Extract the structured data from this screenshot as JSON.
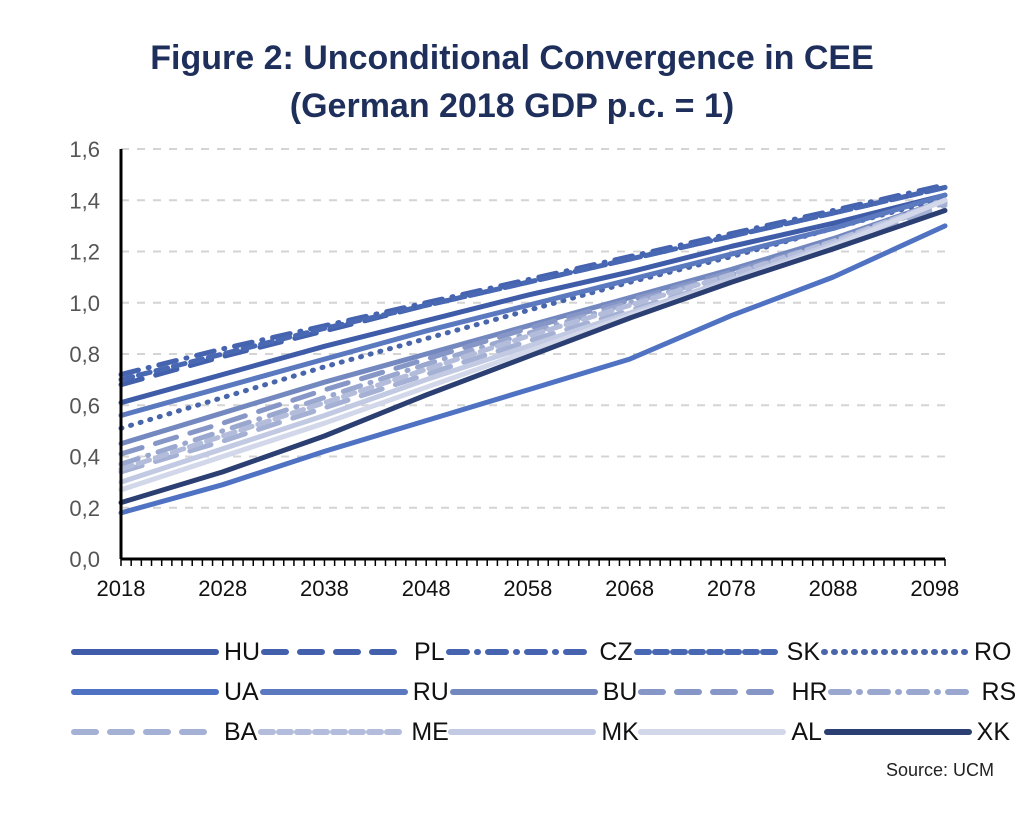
{
  "chart_data": {
    "type": "line",
    "title": "Figure 2: Unconditional Convergence in CEE",
    "subtitle": "(German 2018 GDP p.c. = 1)",
    "xlabel": "",
    "ylabel": "",
    "xlim": [
      2018,
      2099
    ],
    "ylim": [
      0.0,
      1.6
    ],
    "x_ticks": [
      "2018",
      "2028",
      "2038",
      "2048",
      "2058",
      "2068",
      "2078",
      "2088",
      "2098"
    ],
    "y_ticks": [
      "0,0",
      "0,2",
      "0,4",
      "0,6",
      "0,8",
      "1,0",
      "1,2",
      "1,4",
      "1,6"
    ],
    "grid": true,
    "legend_position": "bottom",
    "x": [
      2018,
      2028,
      2038,
      2048,
      2058,
      2068,
      2078,
      2088,
      2099
    ],
    "series": [
      {
        "name": "HU",
        "color": "#3f5ca8",
        "dash": "solid",
        "values": [
          0.61,
          0.72,
          0.83,
          0.93,
          1.03,
          1.12,
          1.22,
          1.31,
          1.42
        ]
      },
      {
        "name": "PL",
        "color": "#4360ad",
        "dash": "longdash",
        "values": [
          0.68,
          0.79,
          0.89,
          0.99,
          1.08,
          1.17,
          1.26,
          1.35,
          1.45
        ]
      },
      {
        "name": "CZ",
        "color": "#4563ae",
        "dash": "dashdot",
        "values": [
          0.72,
          0.82,
          0.91,
          1.0,
          1.09,
          1.18,
          1.27,
          1.36,
          1.46
        ]
      },
      {
        "name": "SK",
        "color": "#4868b3",
        "dash": "dash",
        "values": [
          0.7,
          0.8,
          0.9,
          0.99,
          1.08,
          1.17,
          1.26,
          1.35,
          1.45
        ]
      },
      {
        "name": "RO",
        "color": "#4a66ab",
        "dash": "dot",
        "values": [
          0.51,
          0.63,
          0.75,
          0.86,
          0.97,
          1.08,
          1.18,
          1.29,
          1.41
        ]
      },
      {
        "name": "UA",
        "color": "#4f72c2",
        "dash": "solid",
        "values": [
          0.18,
          0.29,
          0.42,
          0.54,
          0.66,
          0.78,
          0.95,
          1.1,
          1.3
        ]
      },
      {
        "name": "RU",
        "color": "#5b79bf",
        "dash": "solid",
        "values": [
          0.56,
          0.67,
          0.78,
          0.89,
          0.99,
          1.09,
          1.19,
          1.29,
          1.42
        ]
      },
      {
        "name": "BU",
        "color": "#7488c0",
        "dash": "solid",
        "values": [
          0.45,
          0.57,
          0.69,
          0.8,
          0.91,
          1.02,
          1.13,
          1.25,
          1.4
        ]
      },
      {
        "name": "HR",
        "color": "#8696c6",
        "dash": "longdash",
        "values": [
          0.41,
          0.53,
          0.66,
          0.78,
          0.9,
          1.01,
          1.12,
          1.24,
          1.4
        ]
      },
      {
        "name": "RS",
        "color": "#9aa8cf",
        "dash": "dashdot",
        "values": [
          0.37,
          0.5,
          0.63,
          0.76,
          0.88,
          1.0,
          1.11,
          1.23,
          1.39
        ]
      },
      {
        "name": "BA",
        "color": "#a4b0d4",
        "dash": "longdash",
        "values": [
          0.34,
          0.46,
          0.59,
          0.72,
          0.85,
          0.97,
          1.09,
          1.22,
          1.38
        ]
      },
      {
        "name": "ME",
        "color": "#b3bddb",
        "dash": "dash",
        "values": [
          0.35,
          0.48,
          0.61,
          0.74,
          0.87,
          0.99,
          1.11,
          1.24,
          1.4
        ]
      },
      {
        "name": "MK",
        "color": "#c2cae3",
        "dash": "solid",
        "values": [
          0.3,
          0.43,
          0.56,
          0.7,
          0.83,
          0.96,
          1.09,
          1.23,
          1.4
        ]
      },
      {
        "name": "AL",
        "color": "#d2d8ea",
        "dash": "solid",
        "values": [
          0.27,
          0.4,
          0.53,
          0.67,
          0.81,
          0.95,
          1.08,
          1.22,
          1.4
        ]
      },
      {
        "name": "XK",
        "color": "#2b3f72",
        "dash": "solid",
        "values": [
          0.22,
          0.34,
          0.48,
          0.64,
          0.79,
          0.94,
          1.08,
          1.21,
          1.36
        ]
      }
    ]
  },
  "legend_order": [
    [
      "HU",
      "PL",
      "CZ",
      "SK",
      "RO"
    ],
    [
      "UA",
      "RU",
      "BU",
      "HR",
      "RS"
    ],
    [
      "BA",
      "ME",
      "MK",
      "AL",
      "XK"
    ]
  ],
  "source": "Source: UCM"
}
